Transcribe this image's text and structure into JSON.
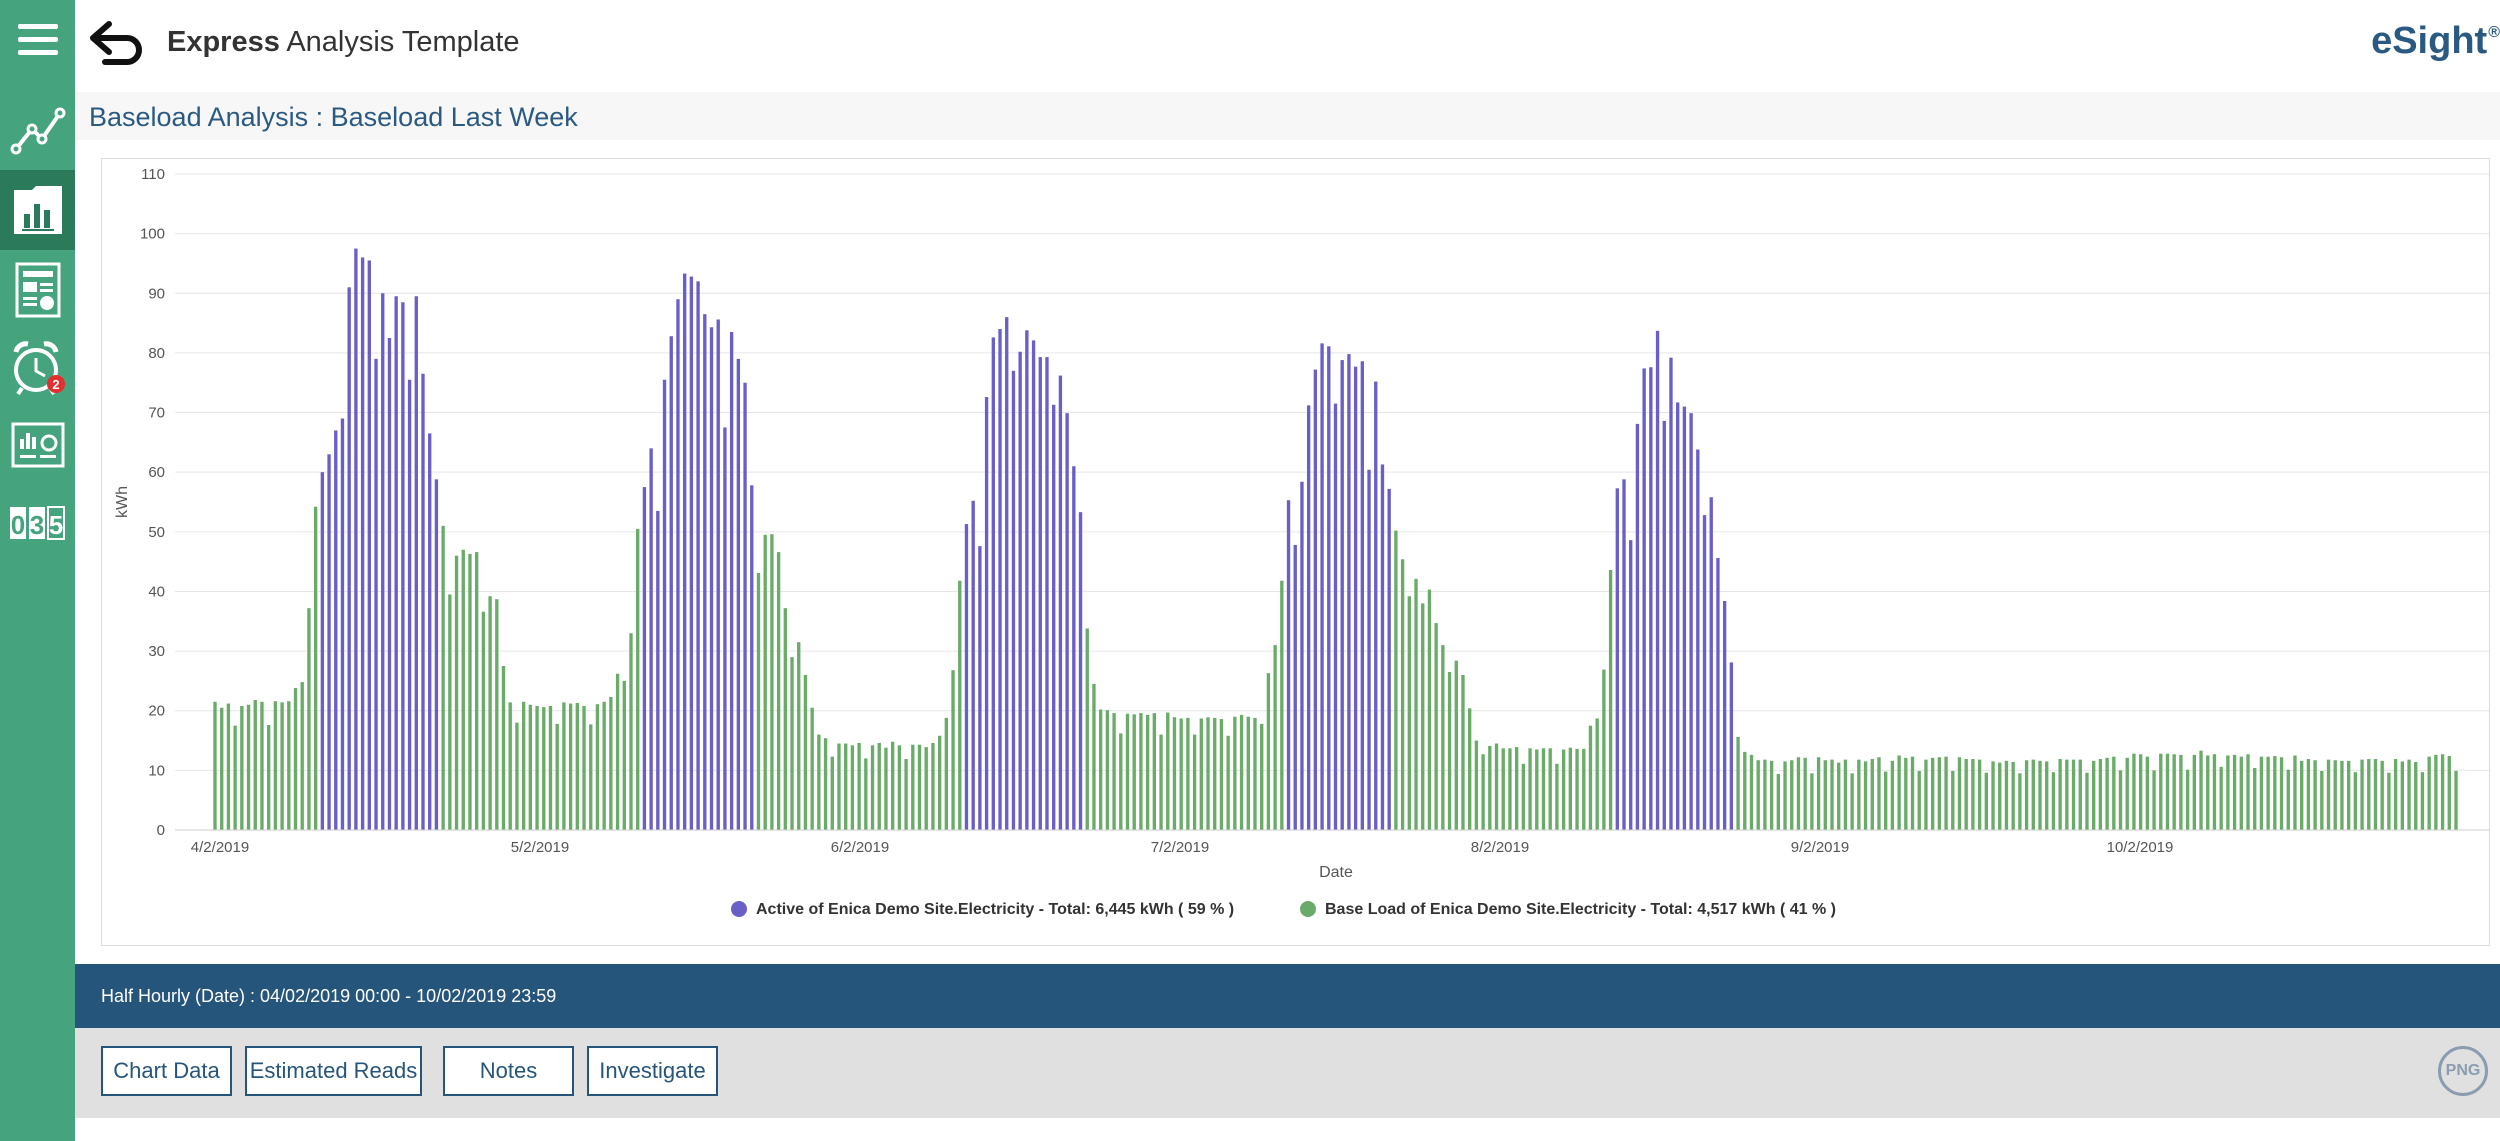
{
  "header": {
    "title_bold": "Express",
    "title_rest": " Analysis Template",
    "brand": "eSight",
    "brand_mark": "®"
  },
  "nav": {
    "alarm_badge": "2",
    "items": [
      {
        "name": "menu-icon"
      },
      {
        "name": "trend-line-icon"
      },
      {
        "name": "bar-chart-report-icon"
      },
      {
        "name": "report-document-icon"
      },
      {
        "name": "alarm-clock-icon"
      },
      {
        "name": "dashboard-icon"
      },
      {
        "name": "meter-reading-icon"
      }
    ]
  },
  "subtitle": "Baseload Analysis : Baseload Last Week",
  "colors": {
    "active": "#6a5fc6",
    "base": "#6aab6a",
    "rail": "#45a37e",
    "info_bar": "#26557c"
  },
  "info": {
    "text": "Half Hourly (Date) : 04/02/2019 00:00 - 10/02/2019 23:59"
  },
  "buttons": {
    "chart_data": "Chart Data",
    "estimated_reads": "Estimated Reads",
    "notes": "Notes",
    "investigate": "Investigate",
    "png": "PNG"
  },
  "chart_data": {
    "type": "bar",
    "title": "",
    "xlabel": "Date",
    "ylabel": "kWh",
    "ylim": [
      0,
      110
    ],
    "yticks": [
      0,
      10,
      20,
      30,
      40,
      50,
      60,
      70,
      80,
      90,
      100,
      110
    ],
    "xtick_labels": [
      "4/2/2019",
      "5/2/2019",
      "6/2/2019",
      "7/2/2019",
      "8/2/2019",
      "9/2/2019",
      "10/2/2019"
    ],
    "grid": true,
    "legend_position": "bottom-center",
    "series_names": [
      "Active of Enica Demo Site.Electricity - Total: 6,445 kWh ( 59 % )",
      "Base Load of Enica Demo Site.Electricity - Total: 4,517 kWh ( 41 % )"
    ],
    "series_keys": [
      "active",
      "base"
    ],
    "interval": "Half Hourly",
    "bar_values": [
      21.5,
      20.5,
      21.2,
      17.5,
      20.8,
      21,
      21.8,
      21.5,
      17.6,
      21.6,
      21.4,
      21.6,
      23.8,
      24.8,
      37.2,
      54.2,
      60,
      63,
      67,
      69,
      91,
      97.5,
      96,
      95.5,
      79,
      90,
      82.5,
      89.5,
      88.5,
      75.5,
      89.5,
      76.5,
      66.5,
      58.8,
      51,
      39.5,
      46,
      47,
      46.3,
      46.6,
      36.6,
      39.2,
      38.7,
      27.5,
      21.4,
      18,
      21.5,
      21,
      20.8,
      20.6,
      20.8,
      17.8,
      21.4,
      21.2,
      21.3,
      20.8,
      17.7,
      21.1,
      21.5,
      22.3,
      26.2,
      25,
      33,
      50.5,
      57.5,
      64,
      53.5,
      75.5,
      82.8,
      89,
      93.3,
      92.8,
      92,
      86.5,
      84.3,
      85.6,
      67.5,
      83.5,
      79,
      75,
      57.8,
      43.1,
      49.5,
      49.6,
      46.6,
      37.2,
      29,
      31.5,
      26,
      20.5,
      16,
      15.4,
      12.3,
      14.5,
      14.5,
      14.2,
      14.6,
      12,
      14.2,
      14.6,
      13.8,
      14.8,
      14.2,
      11.9,
      14.3,
      14.3,
      13.9,
      14.6,
      15.8,
      18.8,
      26.8,
      41.8,
      51.3,
      55.2,
      47.6,
      72.6,
      82.6,
      84,
      86,
      77,
      80.2,
      83.8,
      82.1,
      79.3,
      79.3,
      71.3,
      76.2,
      69.9,
      61,
      53.3,
      33.8,
      24.5,
      20.2,
      20.1,
      19.6,
      16.2,
      19.5,
      19.4,
      19.6,
      19.3,
      19.6,
      16,
      19.7,
      18.9,
      18.7,
      18.8,
      16,
      18.7,
      18.9,
      18.8,
      18.6,
      15.8,
      19,
      19.3,
      19,
      18.8,
      17.8,
      26.3,
      31,
      41.8,
      55.3,
      47.8,
      58.4,
      71.2,
      77.2,
      81.6,
      81.1,
      71.5,
      78.8,
      79.8,
      77.7,
      78.6,
      60.4,
      75.2,
      61.3,
      57.2,
      50.2,
      45.4,
      39.2,
      42.1,
      38,
      40.3,
      34.7,
      31,
      26.5,
      28.4,
      26,
      20.4,
      15,
      12.7,
      14.1,
      14.5,
      13.7,
      13.7,
      13.9,
      11.1,
      13.7,
      13.5,
      13.7,
      13.7,
      11.1,
      13.5,
      13.8,
      13.6,
      13.6,
      17.5,
      18.7,
      26.9,
      43.6,
      57.3,
      58.8,
      48.6,
      68.1,
      77.4,
      77.6,
      83.7,
      68.6,
      79.2,
      71.7,
      71,
      69.9,
      63.8,
      52.8,
      55.8,
      45.6,
      38.4,
      28.1,
      15.6,
      13.1,
      12.6,
      11.7,
      11.8,
      11.6,
      9.4,
      11.5,
      11.7,
      12.2,
      12.1,
      9.5,
      12.2,
      11.7,
      11.8,
      11.3,
      11.8,
      9.5,
      11.8,
      11.5,
      11.9,
      12.2,
      9.8,
      11.6,
      12.5,
      12.1,
      12.3,
      9.9,
      11.8,
      12.1,
      12.2,
      12.3,
      9.9,
      12.2,
      11.9,
      11.9,
      11.8,
      9.6,
      11.5,
      11.3,
      11.6,
      11.4,
      9.5,
      11.7,
      11.8,
      11.6,
      11.5,
      9.7,
      11.9,
      11.8,
      11.8,
      11.8,
      9.6,
      11.6,
      11.9,
      12.1,
      12.3,
      10,
      12.1,
      12.8,
      12.7,
      12.3,
      10,
      12.8,
      12.8,
      12.7,
      12.6,
      10.1,
      12.6,
      13.3,
      12.5,
      12.7,
      10.6,
      12.5,
      12.6,
      12.3,
      12.7,
      10.4,
      12.3,
      12.3,
      12.4,
      12.2,
      10.1,
      12.5,
      11.6,
      11.9,
      11.7,
      9.9,
      11.8,
      11.7,
      11.6,
      11.6,
      9.7,
      11.8,
      11.9,
      11.9,
      11.6,
      9.6,
      11.9,
      11.5,
      11.8,
      11.4,
      9.7,
      12.3,
      12.6,
      12.7,
      12.4,
      9.9
    ],
    "bar_series": [
      1,
      1,
      1,
      1,
      1,
      1,
      1,
      1,
      1,
      1,
      1,
      1,
      1,
      1,
      1,
      1,
      0,
      0,
      0,
      0,
      0,
      0,
      0,
      0,
      0,
      0,
      0,
      0,
      0,
      0,
      0,
      0,
      0,
      0,
      1,
      1,
      1,
      1,
      1,
      1,
      1,
      1,
      1,
      1,
      1,
      1,
      1,
      1,
      1,
      1,
      1,
      1,
      1,
      1,
      1,
      1,
      1,
      1,
      1,
      1,
      1,
      1,
      1,
      1,
      0,
      0,
      0,
      0,
      0,
      0,
      0,
      0,
      0,
      0,
      0,
      0,
      0,
      0,
      0,
      0,
      0,
      1,
      1,
      1,
      1,
      1,
      1,
      1,
      1,
      1,
      1,
      1,
      1,
      1,
      1,
      1,
      1,
      1,
      1,
      1,
      1,
      1,
      1,
      1,
      1,
      1,
      1,
      1,
      1,
      1,
      1,
      1,
      0,
      0,
      0,
      0,
      0,
      0,
      0,
      0,
      0,
      0,
      0,
      0,
      0,
      0,
      0,
      0,
      0,
      0,
      1,
      1,
      1,
      1,
      1,
      1,
      1,
      1,
      1,
      1,
      1,
      1,
      1,
      1,
      1,
      1,
      1,
      1,
      1,
      1,
      1,
      1,
      1,
      1,
      1,
      1,
      1,
      1,
      1,
      1,
      0,
      0,
      0,
      0,
      0,
      0,
      0,
      0,
      0,
      0,
      0,
      0,
      0,
      0,
      0,
      0,
      1,
      1,
      1,
      1,
      1,
      1,
      1,
      1,
      1,
      1,
      1,
      1,
      1,
      1,
      1,
      1,
      1,
      1,
      1,
      1,
      1,
      1,
      1,
      1,
      1,
      1,
      1,
      1,
      1,
      1,
      1,
      1,
      1,
      0,
      0,
      0,
      0,
      0,
      0,
      0,
      0,
      0,
      0,
      0,
      0,
      0,
      0,
      0,
      0,
      0,
      0,
      1,
      1,
      1,
      1,
      1,
      1,
      1,
      1,
      1,
      1,
      1,
      1,
      1,
      1,
      1,
      1,
      1,
      1,
      1,
      1,
      1,
      1,
      1,
      1,
      1,
      1,
      1,
      1,
      1,
      1,
      1,
      1,
      1,
      1,
      1,
      1,
      1,
      1,
      1,
      1,
      1,
      1,
      1,
      1,
      1,
      1,
      1,
      1,
      1,
      1,
      1,
      1,
      1,
      1,
      1,
      1,
      1,
      1,
      1,
      1,
      1,
      1,
      1,
      1,
      1,
      1,
      1,
      1,
      1,
      1,
      1,
      1,
      1,
      1,
      1,
      1,
      1,
      1,
      1,
      1,
      1,
      1,
      1,
      1,
      1,
      1,
      1,
      1,
      1,
      1,
      1,
      1,
      1,
      1,
      1,
      1,
      1,
      1,
      1,
      1,
      1,
      1,
      1,
      1,
      1,
      1,
      1,
      1,
      1,
      1,
      1,
      1,
      1,
      1,
      1,
      1,
      1,
      1,
      1,
      1,
      1,
      1,
      1,
      1,
      1,
      1,
      1,
      1,
      1,
      1,
      1,
      1,
      1,
      1,
      1,
      1,
      1,
      1,
      1,
      1,
      1,
      1,
      1,
      1
    ]
  }
}
